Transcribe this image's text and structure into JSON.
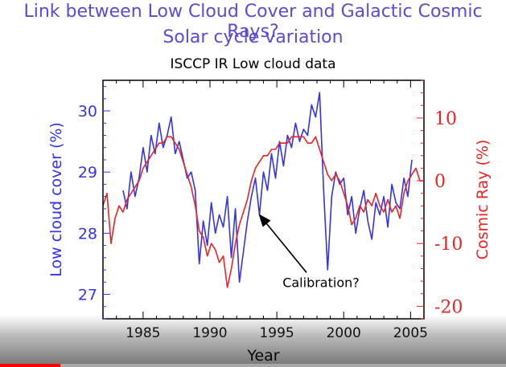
{
  "heading": {
    "line1": "Link between Low Cloud Cover and Galactic Cosmic Rays?",
    "line2": "Solar cycle variation"
  },
  "player": {
    "progress_fraction": 0.12
  },
  "chart_data": {
    "type": "line",
    "title": "ISCCP IR Low cloud data",
    "xlabel": "Year",
    "ylabel_left": "Low cloud cover (%)",
    "ylabel_right": "Cosmic Ray (%)",
    "xlim": [
      1982,
      2006
    ],
    "ylim_left": [
      26.6,
      30.5
    ],
    "ylim_right": [
      -22,
      16
    ],
    "x_ticks": [
      1985,
      1990,
      1995,
      2000,
      2005
    ],
    "y_ticks_left": [
      27,
      28,
      29,
      30
    ],
    "y_ticks_right": [
      -20,
      -10,
      0,
      10
    ],
    "colors": {
      "low_cloud": "#3333ee",
      "cosmic_ray": "#ee2222",
      "left_axis": "#3333ee",
      "right_axis": "#ee2222"
    },
    "annotation": {
      "text": "Calibration?",
      "x": 1998.3,
      "y": 27.2,
      "arrow_to": [
        1993.7,
        28.3
      ]
    },
    "series": [
      {
        "axis": "left",
        "x": [
          1983.5,
          1983.8,
          1984.1,
          1984.4,
          1984.7,
          1985.0,
          1985.3,
          1985.6,
          1985.9,
          1986.2,
          1986.5,
          1986.8,
          1987.1,
          1987.4,
          1987.7,
          1988.0,
          1988.3,
          1988.6,
          1988.9,
          1989.2,
          1989.5,
          1989.8,
          1990.1,
          1990.4,
          1990.7,
          1991.0,
          1991.3,
          1991.6,
          1991.9,
          1992.2,
          1992.5,
          1992.8,
          1993.1,
          1993.4,
          1993.7,
          1994.0,
          1994.3,
          1994.6,
          1994.9,
          1995.2,
          1995.5,
          1995.8,
          1996.1,
          1996.4,
          1996.7,
          1997.0,
          1997.3,
          1997.6,
          1997.9,
          1998.2,
          1998.5,
          1998.8,
          1999.1,
          1999.4,
          1999.7,
          2000.0,
          2000.3,
          2000.6,
          2000.9,
          2001.2,
          2001.5,
          2001.8,
          2002.1,
          2002.4,
          2002.7,
          2003.0,
          2003.3,
          2003.6,
          2003.9,
          2004.2,
          2004.5,
          2004.8,
          2005.1
        ],
        "y": [
          28.7,
          28.4,
          29.0,
          28.6,
          28.9,
          29.4,
          29.0,
          29.6,
          29.3,
          29.8,
          29.4,
          29.6,
          29.9,
          29.3,
          29.5,
          29.2,
          28.9,
          29.0,
          28.7,
          27.5,
          28.2,
          27.8,
          28.5,
          28.0,
          28.3,
          28.1,
          28.6,
          27.6,
          28.4,
          27.2,
          27.7,
          28.2,
          28.6,
          28.9,
          28.3,
          29.0,
          28.7,
          29.3,
          28.9,
          29.5,
          29.1,
          29.6,
          29.4,
          29.8,
          29.5,
          29.7,
          29.6,
          30.1,
          29.9,
          30.3,
          28.7,
          27.4,
          28.6,
          29.0,
          28.8,
          28.9,
          28.3,
          28.6,
          28.0,
          28.4,
          28.7,
          28.2,
          27.9,
          28.5,
          28.3,
          28.6,
          28.1,
          28.8,
          28.5,
          28.4,
          28.9,
          28.6,
          29.2
        ]
      },
      {
        "axis": "right",
        "x": [
          1982.0,
          1982.3,
          1982.6,
          1982.9,
          1983.2,
          1983.5,
          1983.8,
          1984.1,
          1984.4,
          1984.7,
          1985.0,
          1985.3,
          1985.6,
          1985.9,
          1986.2,
          1986.5,
          1986.8,
          1987.1,
          1987.4,
          1987.7,
          1988.0,
          1988.3,
          1988.6,
          1988.9,
          1989.2,
          1989.5,
          1989.8,
          1990.1,
          1990.4,
          1990.7,
          1991.0,
          1991.3,
          1991.6,
          1991.9,
          1992.2,
          1992.5,
          1992.8,
          1993.1,
          1993.4,
          1993.7,
          1994.0,
          1994.3,
          1994.6,
          1994.9,
          1995.2,
          1995.5,
          1995.8,
          1996.1,
          1996.4,
          1996.7,
          1997.0,
          1997.3,
          1997.6,
          1997.9,
          1998.2,
          1998.5,
          1998.8,
          1999.1,
          1999.4,
          1999.7,
          2000.0,
          2000.3,
          2000.6,
          2000.9,
          2001.2,
          2001.5,
          2001.8,
          2002.1,
          2002.4,
          2002.7,
          2003.0,
          2003.3,
          2003.6,
          2003.9,
          2004.2,
          2004.5,
          2004.8,
          2005.1,
          2005.4,
          2005.7,
          2006.0
        ],
        "y": [
          -4,
          -2,
          -10,
          -6,
          -4,
          -5,
          -3,
          -2,
          -1,
          0,
          2,
          3,
          4,
          5,
          6,
          6,
          7,
          7,
          6,
          5,
          3,
          1,
          -1,
          -4,
          -8,
          -9,
          -12,
          -10,
          -11,
          -13,
          -12,
          -17,
          -14,
          -10,
          -7,
          -5,
          -3,
          0,
          2,
          3,
          4,
          4,
          5,
          5,
          6,
          6,
          6,
          7,
          7,
          7,
          7,
          6,
          6,
          7,
          5,
          3,
          1,
          0,
          1,
          0,
          -2,
          -4,
          -7,
          -6,
          -4,
          -5,
          -3,
          -4,
          -2,
          -4,
          -5,
          -3,
          -5,
          -4,
          -6,
          -2,
          0,
          1,
          2,
          0,
          0
        ]
      }
    ]
  }
}
